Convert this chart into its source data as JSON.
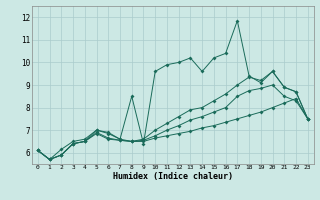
{
  "xlabel": "Humidex (Indice chaleur)",
  "bg_color": "#cce8e4",
  "grid_color": "#aacccc",
  "line_color": "#1a6b5a",
  "xlim": [
    -0.5,
    23.5
  ],
  "ylim": [
    5.5,
    12.5
  ],
  "xticks": [
    0,
    1,
    2,
    3,
    4,
    5,
    6,
    7,
    8,
    9,
    10,
    11,
    12,
    13,
    14,
    15,
    16,
    17,
    18,
    19,
    20,
    21,
    22,
    23
  ],
  "yticks": [
    6,
    7,
    8,
    9,
    10,
    11,
    12
  ],
  "series": [
    [
      6.1,
      5.7,
      5.9,
      6.4,
      6.5,
      7.0,
      6.9,
      6.6,
      8.5,
      6.4,
      9.6,
      9.9,
      10.0,
      10.2,
      9.6,
      10.2,
      10.4,
      11.85,
      9.4,
      9.1,
      9.6,
      8.9,
      8.7,
      7.5
    ],
    [
      6.1,
      5.7,
      5.9,
      6.4,
      6.5,
      6.85,
      6.6,
      6.55,
      6.5,
      6.5,
      6.65,
      6.75,
      6.85,
      6.95,
      7.1,
      7.2,
      7.35,
      7.5,
      7.65,
      7.8,
      8.0,
      8.2,
      8.4,
      7.5
    ],
    [
      6.1,
      5.7,
      6.15,
      6.5,
      6.6,
      7.0,
      6.85,
      6.6,
      6.5,
      6.6,
      7.0,
      7.3,
      7.6,
      7.9,
      8.0,
      8.3,
      8.6,
      9.0,
      9.35,
      9.2,
      9.6,
      8.9,
      8.7,
      7.5
    ],
    [
      6.1,
      5.7,
      5.9,
      6.4,
      6.5,
      6.9,
      6.65,
      6.55,
      6.5,
      6.55,
      6.75,
      7.0,
      7.2,
      7.45,
      7.6,
      7.8,
      8.0,
      8.5,
      8.75,
      8.85,
      9.0,
      8.5,
      8.3,
      7.5
    ]
  ]
}
